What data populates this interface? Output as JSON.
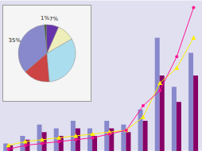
{
  "chart_data": [
    {
      "type": "bar",
      "categories": [
        null,
        null,
        null,
        null,
        null,
        null,
        null,
        null,
        null,
        null,
        null,
        null
      ],
      "series": [
        {
          "type": "bar",
          "color": "#8888CC",
          "values": [
            2,
            4,
            7,
            6,
            8,
            6,
            8,
            7,
            11,
            30,
            17,
            26
          ]
        },
        {
          "type": "bar",
          "color": "#880066",
          "values": [
            1.5,
            3,
            5,
            4,
            6,
            4,
            6,
            5,
            8,
            20,
            13,
            20
          ]
        },
        {
          "type": "line",
          "color": "#FFEE00",
          "marker": "triangle",
          "values": [
            1.5,
            2.5,
            3,
            3.5,
            4,
            4.5,
            5,
            5.5,
            9,
            18,
            22,
            30
          ]
        },
        {
          "type": "line",
          "color": "#FF1493",
          "marker": "circle",
          "values": [
            0.5,
            1.5,
            2,
            2.5,
            3,
            3.5,
            4.5,
            5.5,
            12,
            16,
            25,
            38
          ]
        }
      ],
      "ylim": [
        0,
        40
      ],
      "yticks": [
        0,
        4,
        8,
        12,
        16,
        20,
        24,
        28,
        32,
        36,
        40
      ],
      "grid": true,
      "tick_labels": false
    },
    {
      "type": "pie",
      "values": [
        35,
        15,
        32,
        10,
        7,
        1
      ],
      "value_labels": [
        "35%",
        null,
        null,
        null,
        "7%",
        "1%"
      ],
      "colors": [
        "#8888CC",
        "#CC4444",
        "#AADDEE",
        "#EEEEBB",
        "#6633AA",
        "#335522"
      ],
      "data_labels": true
    }
  ]
}
